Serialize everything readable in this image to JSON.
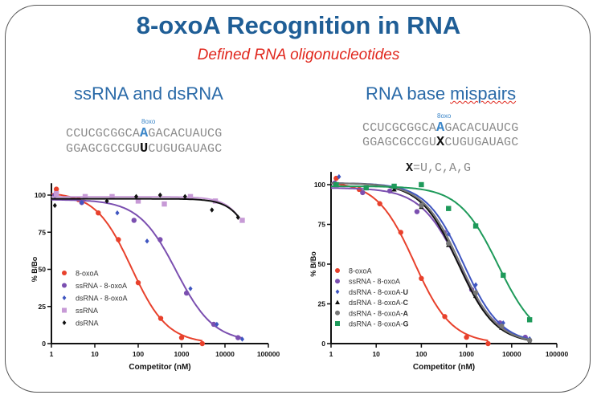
{
  "title": "8-oxoA Recognition in RNA",
  "subtitle": "Defined RNA oligonucleotides",
  "left_panel": {
    "heading": "ssRNA and dsRNA",
    "modification_label": "8oxo",
    "top_strand": {
      "pre": "CCUCGCGGCA",
      "mark": "A",
      "post": "GACACUAUCG"
    },
    "bottom_strand": {
      "pre": "GGAGCGCCGU",
      "mark": "U",
      "post": "CUGUGAUAGC"
    }
  },
  "right_panel": {
    "heading_plain": "RNA base ",
    "heading_underlined": "mispairs",
    "modification_label": "8oxo",
    "top_strand": {
      "pre": "CCUCGCGGCA",
      "mark": "A",
      "post": "GACACUAUCG"
    },
    "bottom_strand": {
      "pre": "GGAGCGCCGU",
      "mark": "X",
      "post": "CUGUGAUAGC"
    },
    "x_definition": {
      "symbol": "X",
      "rest": "=U,C,A,G"
    }
  },
  "chart_data": [
    {
      "type": "scatter",
      "xlabel": "Competitor (nM)",
      "ylabel": "% B/Bo",
      "xscale": "log",
      "xlim": [
        1,
        100000
      ],
      "ylim": [
        0,
        100
      ],
      "xticks": [
        "1",
        "10",
        "100",
        "1000",
        "10000",
        "100000"
      ],
      "yticks": [
        "0",
        "25",
        "50",
        "75",
        "100"
      ],
      "legend_position": "center-left",
      "series": [
        {
          "name": "8-oxoA",
          "color": "#e8412c",
          "marker": "circle",
          "x": [
            1.3,
            4.2,
            12,
            35,
            100,
            330,
            1000,
            3000
          ],
          "y": [
            104,
            97,
            88,
            70,
            41,
            17,
            4,
            0
          ],
          "fit": {
            "top": 102,
            "bottom": 0,
            "ic50": 70,
            "hill": 1.05,
            "xmax": 3000
          }
        },
        {
          "name": "ssRNA - 8-oxoA",
          "color": "#7b4fb0",
          "marker": "circle",
          "x": [
            1.2,
            5,
            80,
            320,
            1300,
            5500,
            20000
          ],
          "y": [
            100,
            95,
            83,
            70,
            34,
            13,
            4
          ],
          "fit": {
            "top": 97,
            "bottom": 1,
            "ic50": 750,
            "hill": 1.0,
            "xmax": 25000
          }
        },
        {
          "name": "dsRNA - 8-oxoA",
          "color": "#3f55c0",
          "marker": "diamond",
          "x": [
            1.2,
            5,
            33,
            160,
            1600,
            6500,
            25000
          ],
          "y": [
            99,
            95,
            88,
            69,
            37,
            13,
            3
          ],
          "fit": null
        },
        {
          "name": "ssRNA",
          "color": "#c79ad6",
          "marker": "square",
          "x": [
            1.3,
            6,
            25,
            100,
            400,
            1600,
            6000,
            25000
          ],
          "y": [
            101,
            99,
            99,
            96,
            94,
            99,
            96,
            83
          ],
          "fit": {
            "top": 98.8,
            "bottom": 0,
            "ic50": 70000,
            "hill": 1.5,
            "xmax": 20000
          }
        },
        {
          "name": "dsRNA",
          "color": "#111111",
          "marker": "diamond",
          "x": [
            1.2,
            19,
            90,
            320,
            1200,
            5000,
            20000
          ],
          "y": [
            93,
            96,
            99,
            100,
            99,
            90,
            85
          ],
          "fit": {
            "top": 97.5,
            "bottom": 0,
            "ic50": 75000,
            "hill": 1.5,
            "xmax": 20000
          }
        }
      ]
    },
    {
      "type": "scatter",
      "xlabel": "Competitor (nM)",
      "ylabel": "% B/Bo",
      "xscale": "log",
      "xlim": [
        1,
        100000
      ],
      "ylim": [
        0,
        100
      ],
      "xticks": [
        "1",
        "10",
        "100",
        "1000",
        "10000",
        "100000"
      ],
      "yticks": [
        "0",
        "25",
        "50",
        "75",
        "100"
      ],
      "legend_position": "center-left",
      "series": [
        {
          "name": "8-oxoA",
          "color": "#e8412c",
          "marker": "circle",
          "x": [
            1.3,
            4.2,
            12,
            35,
            100,
            330,
            1000,
            3000
          ],
          "y": [
            104,
            97,
            88,
            70,
            41,
            17,
            4,
            0
          ],
          "fit": {
            "top": 102,
            "bottom": 0,
            "ic50": 70,
            "hill": 1.05,
            "xmax": 3000
          }
        },
        {
          "name": "ssRNA - 8-oxoA",
          "color": "#7b4fb0",
          "marker": "circle",
          "x": [
            1.2,
            5,
            20,
            80,
            320,
            1300,
            5500,
            20000
          ],
          "y": [
            101,
            95,
            96,
            83,
            70,
            34,
            13,
            4
          ],
          "fit": {
            "top": 98,
            "bottom": 0,
            "ic50": 700,
            "hill": 1.0,
            "xmax": 25000
          }
        },
        {
          "name": "dsRNA - 8-oxoA-",
          "bold_suffix": "U",
          "color": "#3f55c0",
          "marker": "diamond",
          "x": [
            1.5,
            100,
            400,
            1600,
            6500,
            25000
          ],
          "y": [
            105,
            88,
            69,
            37,
            13,
            3
          ],
          "fit": {
            "top": 101,
            "bottom": 0,
            "ic50": 850,
            "hill": 1.05,
            "xmax": 25000
          }
        },
        {
          "name": "dsRNA - 8-oxoA-",
          "bold_suffix": "C",
          "color": "#111111",
          "marker": "triangle",
          "x": [
            25,
            100,
            400,
            1600,
            6000,
            25000
          ],
          "y": [
            97,
            86,
            62,
            30,
            10,
            1
          ],
          "fit": {
            "top": 101,
            "bottom": 0,
            "ic50": 650,
            "hill": 1.05,
            "xmax": 25000
          }
        },
        {
          "name": "dsRNA - 8-oxoA-",
          "bold_suffix": "A",
          "color": "#777777",
          "marker": "circle",
          "x": [
            100,
            400,
            1600,
            6000,
            25000
          ],
          "y": [
            87,
            63,
            32,
            11,
            2
          ],
          "fit": {
            "top": 101,
            "bottom": 0,
            "ic50": 720,
            "hill": 1.05,
            "xmax": 25000
          }
        },
        {
          "name": "dsRNA - 8-oxoA-",
          "bold_suffix": "G",
          "color": "#1e9a5a",
          "marker": "square",
          "x": [
            1.3,
            6,
            25,
            100,
            400,
            1600,
            6500,
            25000
          ],
          "y": [
            100,
            98,
            99,
            100,
            85,
            74,
            43,
            15
          ],
          "fit": {
            "top": 99,
            "bottom": 0,
            "ic50": 5000,
            "hill": 1.0,
            "xmax": 25000
          }
        }
      ]
    }
  ]
}
